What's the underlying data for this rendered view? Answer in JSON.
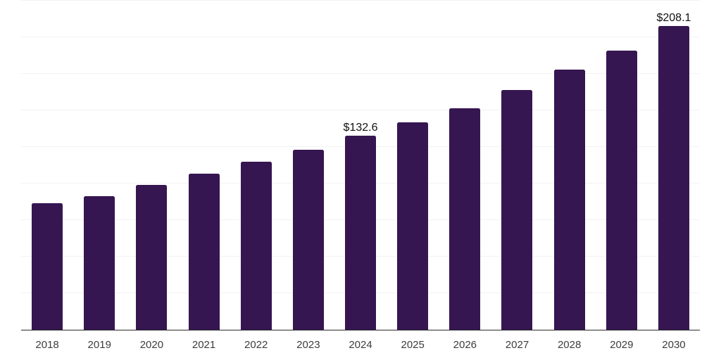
{
  "chart": {
    "background": "#ffffff",
    "bar_color": "#361651",
    "axis_line_color": "#2b2b2b",
    "gridline_color": "#f2f2f2",
    "tick_label_color": "#3d3d3d",
    "value_label_color": "#111111"
  },
  "chart_data": {
    "type": "bar",
    "title": "",
    "xlabel": "",
    "ylabel": "",
    "categories": [
      "2018",
      "2019",
      "2020",
      "2021",
      "2022",
      "2023",
      "2024",
      "2025",
      "2026",
      "2027",
      "2028",
      "2029",
      "2030"
    ],
    "values": [
      86.5,
      91.5,
      99.3,
      106.8,
      115.0,
      123.1,
      132.6,
      141.8,
      151.6,
      164.3,
      178.1,
      191.2,
      208.1
    ],
    "data_labels": [
      null,
      null,
      null,
      null,
      null,
      null,
      "$132.6",
      null,
      null,
      null,
      null,
      null,
      "$208.1"
    ],
    "currency_prefix": "$",
    "ylim": [
      0,
      225.2
    ],
    "gridline_interval": 25,
    "grid": true,
    "y_axis_labels_shown": false,
    "legend": false
  }
}
